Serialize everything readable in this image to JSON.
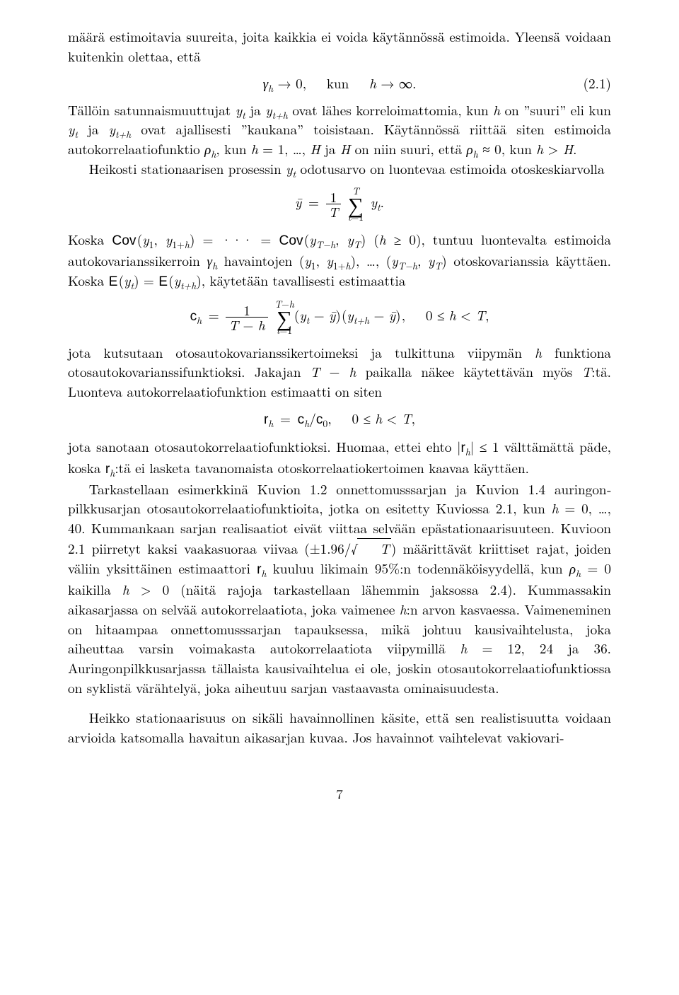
{
  "p1a": "määrä estimoitavia suureita, joita kaikkia ei voida käytännössä estimoida. Yleensä voidaan kuitenkin olettaa, että",
  "eq1_body_html": "<span class='math'>γ<sub>h</sub></span> → 0,&nbsp;&nbsp;&nbsp;kun&nbsp;&nbsp;&nbsp;<span class='math'>h</span> → ∞.",
  "eq1_num": "(2.1)",
  "p2_html": "Tällöin satunnaismuuttujat <span class='math'>y<sub>t</sub></span> ja <span class='math'>y<sub>t+h</sub></span> ovat lähes korreloimattomia, kun <span class='math'>h</span> on ”suuri” eli kun <span class='math'>y<sub>t</sub></span> ja <span class='math'>y<sub>t+h</sub></span> ovat ajallisesti ”kaukana” toisistaan. Käytännössä riittää siten estimoida autokorrelaatiofunktio <span class='math'>ρ<sub>h</sub></span>, kun <span class='math'>h</span> = 1, …, <span class='math'>H</span> ja <span class='math'>H</span> on niin suuri, että <span class='math'>ρ<sub>h</sub></span> ≈ 0, kun <span class='math'>h</span> &gt; <span class='math'>H</span>.",
  "p3_html": "Heikosti stationaarisen prosessin <span class='math'>y<sub>t</sub></span> odotusarvo on luontevaa estimoida otoskeskiarvolla",
  "eq2_body_html": "<span class='math'>ȳ</span>&nbsp;=&nbsp;<span class='frac'><span class='n'>1</span><span class='d'><span class='math'>T</span></span></span>&nbsp;<span class='sumfrac'><span class='top'><span class='math'>T</span></span><span class='mid'>∑</span><span class='bot'><span class='math'>t</span>=1</span></span>&nbsp;<span class='math'>y<sub>t</sub></span>.",
  "p4_html": "Koska <span class='sf'>Cov</span>&#8202;(<span class='math'>y</span><sub>1</sub>, <span class='math'>y</span><sub>1+<span class='math'>h</span></sub>) = ··· = <span class='sf'>Cov</span>&#8202;(<span class='math'>y<sub>T−h</sub></span>, <span class='math'>y<sub>T</sub></span>) (<span class='math'>h</span> ≥ 0), tuntuu luontevalta estimoida autokovarianssikerroin <span class='math'>γ<sub>h</sub></span> havaintojen (<span class='math'>y</span><sub>1</sub>, <span class='math'>y</span><sub>1+<span class='math'>h</span></sub>), …, (<span class='math'>y<sub>T−h</sub></span>, <span class='math'>y<sub>T</sub></span>) otoskovarianssia käyttäen. Koska <span class='sf'>E</span>&#8202;(<span class='math'>y<sub>t</sub></span>) = <span class='sf'>E</span>&#8202;(<span class='math'>y<sub>t+h</sub></span>), käytetään tavallisesti estimaattia",
  "eq3_body_html": "<span class='sf'>c</span><sub><span class='math'>h</span></sub>&nbsp;=&nbsp;<span class='frac'><span class='n'>1</span><span class='d'><span class='math'>T</span> − <span class='math'>h</span></span></span>&nbsp;<span class='sumfrac'><span class='top'><span class='math'>T</span>−<span class='math'>h</span></span><span class='mid'>∑</span><span class='bot'><span class='math'>t</span>=1</span></span>(<span class='math'>y<sub>t</sub></span> − <span class='math'>ȳ</span>)&#8202;(<span class='math'>y<sub>t+h</sub></span> − <span class='math'>ȳ</span>)&#8202;,&nbsp;&nbsp;&nbsp;0 ≤ <span class='math'>h</span> &lt; <span class='math'>T</span>,",
  "p5_html": "jota kutsutaan otosautokovarianssikertoimeksi ja tulkittuna viipymän <span class='math'>h</span> funktiona otosautokovarianssifunktioksi. Jakajan <span class='math'>T</span> − <span class='math'>h</span> paikalla näkee käytettävän myös <span class='math'>T</span>:tä. Luonteva autokorrelaatiofunktion estimaatti on siten",
  "eq4_body_html": "<span class='sf'>r</span><sub><span class='math'>h</span></sub>&nbsp;=&nbsp;<span class='sf'>c</span><sub><span class='math'>h</span></sub>/<span class='sf'>c</span><sub>0</sub>,&nbsp;&nbsp;&nbsp;0 ≤ <span class='math'>h</span> &lt; <span class='math'>T</span>,",
  "p6_html": "jota sanotaan otosautokorrelaatiofunktioksi. Huomaa, ettei ehto |<span class='sf'>r</span><sub><span class='math'>h</span></sub>| ≤ 1 välttämättä päde, koska <span class='sf'>r</span><sub><span class='math'>h</span></sub>:tä ei lasketa tavanomaista otoskorrelaatiokertoimen kaavaa käyttäen.",
  "p7_html": "Tarkastellaan esimerkkinä Kuvion 1.2 onnettomusssarjan ja Kuvion 1.4 auringon­pilkkusarjan otosautokorrelaatiofunktioita, jotka on esitetty Kuviossa 2.1, kun <span class='math'>h</span> = 0, …, 40. Kummankaan sarjan realisaatiot eivät viittaa selvään epästationaarisuu­teen. Kuvioon 2.1 piirretyt kaksi vaakasuoraa viivaa (±1.96/<span class='up'>√</span><span class='sqrtbox'>T</span>) määrittävät kriit­tiset rajat, joiden väliin yksittäinen estimaattori <span class='sf'>r</span><sub><span class='math'>h</span></sub> kuuluu likimain 95%:n toden­näköisyydellä, kun <span class='math'>ρ<sub>h</sub></span> = 0 kaikilla <span class='math'>h</span> &gt; 0 (näitä rajoja tarkastellaan lähemmin jak­sossa 2.4). Kummassakin aikasarjassa on selvää autokorrelaatiota, joka vaimenee <span class='math'>h</span>:n arvon kasvaessa. Vaimeneminen on hitaampaa onnettomusssarjan tapauksessa, mikä johtuu kausivaihtelusta, joka aiheuttaa varsin voimakasta autokorrelaatiota vii­pymillä <span class='math'>h</span> = 12, 24 ja 36. Auringonpilkkusarjassa tällaista kausivaihtelua ei ole, joskin otosautokorrelaatiofunktiossa on syklistä värähtelyä, joka aiheutuu sarjan vastaavasta ominaisuudesta.",
  "p8_html": "Heikko stationaarisuus on sikäli havainnollinen käsite, että sen realistisuutta voidaan arvioida katsomalla havaitun aikasarjan kuvaa. Jos havainnot vaihtelevat vakiovari-",
  "page_number": "7"
}
